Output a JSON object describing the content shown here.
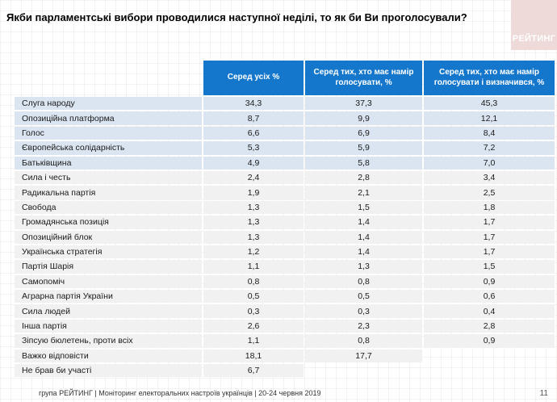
{
  "title": "Якби парламентські вибори проводилися наступної неділі, то як би Ви проголосували?",
  "logo": {
    "text": "РЕЙТИНГ",
    "bg_color": "#eedad8"
  },
  "colors": {
    "header_bg": "#1577cb",
    "highlight_row_bg": "#dbe5f1",
    "row_bg": "#f1f1f1"
  },
  "table": {
    "columns": [
      "Серед усіх %",
      "Серед тих, хто має намір голосувати, %",
      "Серед тих, хто має намір голосувати і визначився, %"
    ],
    "rows": [
      {
        "label": "Слуга народу",
        "values": [
          "34,3",
          "37,3",
          "45,3"
        ],
        "highlight": true
      },
      {
        "label": "Опозиційна платформа",
        "values": [
          "8,7",
          "9,9",
          "12,1"
        ],
        "highlight": true
      },
      {
        "label": "Голос",
        "values": [
          "6,6",
          "6,9",
          "8,4"
        ],
        "highlight": true
      },
      {
        "label": "Європейська солідарність",
        "values": [
          "5,3",
          "5,9",
          "7,2"
        ],
        "highlight": true
      },
      {
        "label": "Батьківщина",
        "values": [
          "4,9",
          "5,8",
          "7,0"
        ],
        "highlight": true
      },
      {
        "label": "Сила і честь",
        "values": [
          "2,4",
          "2,8",
          "3,4"
        ],
        "highlight": false
      },
      {
        "label": "Радикальна партія",
        "values": [
          "1,9",
          "2,1",
          "2,5"
        ],
        "highlight": false
      },
      {
        "label": "Свобода",
        "values": [
          "1,3",
          "1,5",
          "1,8"
        ],
        "highlight": false
      },
      {
        "label": "Громадянська позиція",
        "values": [
          "1,3",
          "1,4",
          "1,7"
        ],
        "highlight": false
      },
      {
        "label": "Опозиційний блок",
        "values": [
          "1,3",
          "1,4",
          "1,7"
        ],
        "highlight": false
      },
      {
        "label": "Українська стратегія",
        "values": [
          "1,2",
          "1,4",
          "1,7"
        ],
        "highlight": false
      },
      {
        "label": "Партія Шарія",
        "values": [
          "1,1",
          "1,3",
          "1,5"
        ],
        "highlight": false
      },
      {
        "label": "Самопоміч",
        "values": [
          "0,8",
          "0,8",
          "0,9"
        ],
        "highlight": false
      },
      {
        "label": "Аграрна партія України",
        "values": [
          "0,5",
          "0,5",
          "0,6"
        ],
        "highlight": false
      },
      {
        "label": "Сила людей",
        "values": [
          "0,3",
          "0,3",
          "0,4"
        ],
        "highlight": false
      },
      {
        "label": "Інша партія",
        "values": [
          "2,6",
          "2,3",
          "2,8"
        ],
        "highlight": false
      },
      {
        "label": "Зіпсую бюлетень, проти всіх",
        "values": [
          "1,1",
          "0,8",
          "0,9"
        ],
        "highlight": false
      },
      {
        "label": "Важко відповісти",
        "values": [
          "18,1",
          "17,7",
          null
        ],
        "highlight": false
      },
      {
        "label": "Не брав би участі",
        "values": [
          "6,7",
          null,
          null
        ],
        "highlight": false
      }
    ]
  },
  "footer": {
    "text": "група РЕЙТИНГ | Моніторинг електоральних настроїв українців | 20-24 червня 2019",
    "page": "11"
  },
  "chart_data": {
    "type": "table",
    "title": "Якби парламентські вибори проводилися наступної неділі, то як би Ви проголосували?",
    "categories": [
      "Слуга народу",
      "Опозиційна платформа",
      "Голос",
      "Європейська солідарність",
      "Батьківщина",
      "Сила і честь",
      "Радикальна партія",
      "Свобода",
      "Громадянська позиція",
      "Опозиційний блок",
      "Українська стратегія",
      "Партія Шарія",
      "Самопоміч",
      "Аграрна партія України",
      "Сила людей",
      "Інша партія",
      "Зіпсую бюлетень, проти всіх",
      "Важко відповісти",
      "Не брав би участі"
    ],
    "series": [
      {
        "name": "Серед усіх %",
        "values": [
          34.3,
          8.7,
          6.6,
          5.3,
          4.9,
          2.4,
          1.9,
          1.3,
          1.3,
          1.3,
          1.2,
          1.1,
          0.8,
          0.5,
          0.3,
          2.6,
          1.1,
          18.1,
          6.7
        ]
      },
      {
        "name": "Серед тих, хто має намір голосувати, %",
        "values": [
          37.3,
          9.9,
          6.9,
          5.9,
          5.8,
          2.8,
          2.1,
          1.5,
          1.4,
          1.4,
          1.4,
          1.3,
          0.8,
          0.5,
          0.3,
          2.3,
          0.8,
          17.7,
          null
        ]
      },
      {
        "name": "Серед тих, хто має намір голосувати і визначився, %",
        "values": [
          45.3,
          12.1,
          8.4,
          7.2,
          7.0,
          3.4,
          2.5,
          1.8,
          1.7,
          1.7,
          1.7,
          1.5,
          0.9,
          0.6,
          0.4,
          2.8,
          0.9,
          null,
          null
        ]
      }
    ],
    "layout": {
      "highlighted_top_rows": 5,
      "legend_position": "header-row"
    }
  }
}
